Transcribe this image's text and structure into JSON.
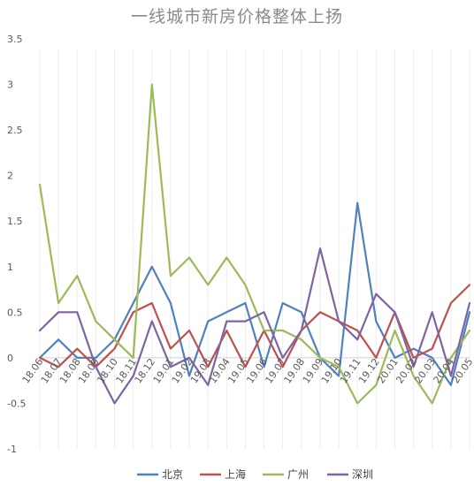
{
  "chart_data": {
    "type": "line",
    "title": "一线城市新房价格整体上扬",
    "xlabel": "",
    "ylabel": "",
    "ylim": [
      -1,
      3.5
    ],
    "yticks": [
      -1,
      -0.5,
      0,
      0.5,
      1,
      1.5,
      2,
      2.5,
      3,
      3.5
    ],
    "ytick_labels": [
      "-1",
      "-0.5",
      "0",
      "0.5",
      "1",
      "1.5",
      "2",
      "2.5",
      "3",
      "3.5"
    ],
    "x": [
      "18.06",
      "18.07",
      "18.08",
      "18.09",
      "18.10",
      "18.11",
      "18.12",
      "19.01",
      "19.02",
      "19.03",
      "19.04",
      "19.05",
      "19.06",
      "19.07",
      "19.08",
      "19.09",
      "19.10",
      "19.11",
      "19.12",
      "20.01",
      "20.02",
      "20.03",
      "20.04",
      "20.05"
    ],
    "x_labeled": [
      "18.06",
      "18.07",
      "18.08",
      "18.09",
      "18.10",
      "18.11",
      "18.12",
      "19.01",
      "19.02",
      "19.03",
      "19.04",
      "19.05",
      "19.06",
      "19.07",
      "19.08",
      "19.09",
      "19.10",
      "19.11",
      "19.12",
      "20.01",
      "20.02",
      "20.03",
      "20.04",
      "20.05"
    ],
    "grid": "vertical-light",
    "legend_position": "bottom",
    "series": [
      {
        "name": "北京",
        "color": "#4F81BD",
        "values": [
          0,
          0.2,
          0,
          0,
          0.2,
          0.6,
          1.0,
          0.6,
          -0.2,
          0.4,
          0.5,
          0.6,
          -0.1,
          0.6,
          0.5,
          0,
          -0.2,
          1.7,
          0.4,
          0,
          0.1,
          0,
          -0.3,
          0.5
        ]
      },
      {
        "name": "上海",
        "color": "#C0504D",
        "values": [
          0,
          -0.1,
          0.1,
          -0.1,
          0.1,
          0.5,
          0.6,
          0.1,
          0.3,
          -0.1,
          0.3,
          -0.1,
          0.3,
          -0.1,
          0.3,
          0.5,
          0.4,
          0.3,
          0,
          0.5,
          0,
          0.1,
          0.6,
          0.8
        ]
      },
      {
        "name": "广州",
        "color": "#9BBB59",
        "values": [
          1.9,
          0.6,
          0.9,
          0.4,
          0.2,
          0,
          3.0,
          0.9,
          1.1,
          0.8,
          1.1,
          0.8,
          0.3,
          0.3,
          0.2,
          0,
          -0.1,
          -0.5,
          -0.3,
          0.3,
          -0.2,
          -0.5,
          0,
          0.3
        ]
      },
      {
        "name": "深圳",
        "color": "#8064A2",
        "values": [
          0.3,
          0.5,
          0.5,
          -0.1,
          -0.5,
          -0.2,
          0.4,
          -0.1,
          0,
          -0.3,
          0.4,
          0.4,
          0.5,
          0,
          0.3,
          1.2,
          0.4,
          0.2,
          0.7,
          0.5,
          -0.1,
          0.5,
          -0.2,
          0.6
        ]
      }
    ]
  }
}
